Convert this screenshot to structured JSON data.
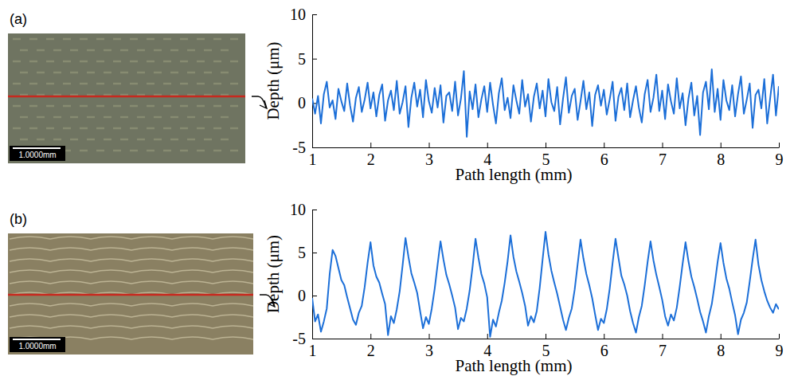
{
  "figure": {
    "panels": [
      {
        "label": "(a)",
        "scale_bar": "1.0000mm"
      },
      {
        "label": "(b)",
        "scale_bar": "1.0000mm"
      }
    ]
  },
  "chart_data": [
    {
      "type": "line",
      "x_label": "Path length (mm)",
      "y_label": "Depth (μm)",
      "xlim": [
        1,
        9
      ],
      "xticks": [
        1,
        2,
        3,
        4,
        5,
        6,
        7,
        8,
        9
      ],
      "ylim": [
        -5,
        10
      ],
      "yticks": [
        -5,
        0,
        5,
        10
      ],
      "grid": false,
      "x": [
        1,
        1.05,
        1.1,
        1.15,
        1.2,
        1.25,
        1.3,
        1.35,
        1.4,
        1.45,
        1.5,
        1.55,
        1.6,
        1.65,
        1.7,
        1.75,
        1.8,
        1.85,
        1.9,
        1.95,
        2,
        2.05,
        2.1,
        2.15,
        2.2,
        2.25,
        2.3,
        2.35,
        2.4,
        2.45,
        2.5,
        2.55,
        2.6,
        2.65,
        2.7,
        2.75,
        2.8,
        2.85,
        2.9,
        2.95,
        3,
        3.05,
        3.1,
        3.15,
        3.2,
        3.25,
        3.3,
        3.35,
        3.4,
        3.45,
        3.5,
        3.55,
        3.6,
        3.65,
        3.7,
        3.75,
        3.8,
        3.85,
        3.9,
        3.95,
        4,
        4.05,
        4.1,
        4.15,
        4.2,
        4.25,
        4.3,
        4.35,
        4.4,
        4.45,
        4.5,
        4.55,
        4.6,
        4.65,
        4.7,
        4.75,
        4.8,
        4.85,
        4.9,
        4.95,
        5,
        5.05,
        5.1,
        5.15,
        5.2,
        5.25,
        5.3,
        5.35,
        5.4,
        5.45,
        5.5,
        5.55,
        5.6,
        5.65,
        5.7,
        5.75,
        5.8,
        5.85,
        5.9,
        5.95,
        6,
        6.05,
        6.1,
        6.15,
        6.2,
        6.25,
        6.3,
        6.35,
        6.4,
        6.45,
        6.5,
        6.55,
        6.6,
        6.65,
        6.7,
        6.75,
        6.8,
        6.85,
        6.9,
        6.95,
        7,
        7.05,
        7.1,
        7.15,
        7.2,
        7.25,
        7.3,
        7.35,
        7.4,
        7.45,
        7.5,
        7.55,
        7.6,
        7.65,
        7.7,
        7.75,
        7.8,
        7.85,
        7.9,
        7.95,
        8,
        8.05,
        8.1,
        8.15,
        8.2,
        8.25,
        8.3,
        8.35,
        8.4,
        8.45,
        8.5,
        8.55,
        8.6,
        8.65,
        8.7,
        8.75,
        8.8,
        8.85,
        8.9,
        8.95,
        9
      ],
      "series": [
        {
          "color": "#1c6fd8",
          "line_style": "solid",
          "values": [
            0.5,
            -1.2,
            0.8,
            -2.3,
            1.0,
            2.4,
            -0.5,
            0.3,
            -1.8,
            1.6,
            0.2,
            -0.9,
            2.2,
            -0.3,
            -2.1,
            0.6,
            1.8,
            -1.0,
            0.4,
            2.3,
            -0.6,
            1.2,
            -1.5,
            0.9,
            2.1,
            -2.0,
            0.3,
            1.4,
            -0.8,
            2.5,
            -1.2,
            0.1,
            1.9,
            -2.7,
            0.6,
            2.3,
            -0.4,
            1.5,
            -1.6,
            2.6,
            0.2,
            -1.1,
            1.7,
            -0.5,
            2.0,
            -2.2,
            0.8,
            1.2,
            -0.9,
            2.4,
            -1.4,
            0.5,
            3.6,
            -3.8,
            1.3,
            -0.7,
            2.1,
            -1.6,
            0.4,
            1.9,
            -1.0,
            2.3,
            -0.2,
            -2.3,
            1.1,
            2.8,
            -0.8,
            0.6,
            -1.7,
            2.0,
            0.3,
            -1.2,
            2.6,
            -0.4,
            1.0,
            -2.1,
            0.7,
            2.2,
            -0.6,
            1.4,
            -1.5,
            2.7,
            0.1,
            -0.9,
            1.8,
            -2.4,
            0.5,
            2.9,
            -1.1,
            0.8,
            1.6,
            -1.9,
            0.2,
            2.5,
            -0.7,
            1.2,
            -2.6,
            0.9,
            2.0,
            -0.3,
            1.5,
            -1.3,
            0.4,
            2.4,
            -2.0,
            0.7,
            1.7,
            -0.8,
            2.2,
            -1.6,
            0.3,
            1.9,
            -0.5,
            -2.2,
            1.0,
            2.6,
            -1.0,
            0.6,
            3.2,
            -0.9,
            1.4,
            -1.8,
            2.1,
            0.2,
            -1.2,
            2.8,
            -0.6,
            1.1,
            -2.5,
            0.5,
            2.3,
            -1.4,
            0.8,
            -3.6,
            1.2,
            2.4,
            -0.7,
            3.8,
            -1.0,
            1.6,
            -1.9,
            2.6,
            0.3,
            -0.8,
            2.0,
            -1.5,
            1.0,
            3.0,
            -1.2,
            0.4,
            2.2,
            -2.8,
            0.9,
            1.5,
            -0.6,
            2.7,
            -2.3,
            0.5,
            3.2,
            -1.4,
            1.9
          ]
        }
      ]
    },
    {
      "type": "line",
      "x_label": "Path length (mm)",
      "y_label": "Depth (μm)",
      "xlim": [
        1,
        9
      ],
      "xticks": [
        1,
        2,
        3,
        4,
        5,
        6,
        7,
        8,
        9
      ],
      "ylim": [
        -5,
        10
      ],
      "yticks": [
        -5,
        0,
        5,
        10
      ],
      "grid": false,
      "x": [
        1,
        1.05,
        1.1,
        1.15,
        1.2,
        1.25,
        1.3,
        1.35,
        1.4,
        1.45,
        1.5,
        1.55,
        1.6,
        1.65,
        1.7,
        1.75,
        1.8,
        1.85,
        1.9,
        1.95,
        2,
        2.05,
        2.1,
        2.15,
        2.2,
        2.25,
        2.3,
        2.35,
        2.4,
        2.45,
        2.5,
        2.55,
        2.6,
        2.65,
        2.7,
        2.75,
        2.8,
        2.85,
        2.9,
        2.95,
        3,
        3.05,
        3.1,
        3.15,
        3.2,
        3.25,
        3.3,
        3.35,
        3.4,
        3.45,
        3.5,
        3.55,
        3.6,
        3.65,
        3.7,
        3.75,
        3.8,
        3.85,
        3.9,
        3.95,
        4,
        4.05,
        4.1,
        4.15,
        4.2,
        4.25,
        4.3,
        4.35,
        4.4,
        4.45,
        4.5,
        4.55,
        4.6,
        4.65,
        4.7,
        4.75,
        4.8,
        4.85,
        4.9,
        4.95,
        5,
        5.05,
        5.1,
        5.15,
        5.2,
        5.25,
        5.3,
        5.35,
        5.4,
        5.45,
        5.5,
        5.55,
        5.6,
        5.65,
        5.7,
        5.75,
        5.8,
        5.85,
        5.9,
        5.95,
        6,
        6.05,
        6.1,
        6.15,
        6.2,
        6.25,
        6.3,
        6.35,
        6.4,
        6.45,
        6.5,
        6.55,
        6.6,
        6.65,
        6.7,
        6.75,
        6.8,
        6.85,
        6.9,
        6.95,
        7,
        7.05,
        7.1,
        7.15,
        7.2,
        7.25,
        7.3,
        7.35,
        7.4,
        7.45,
        7.5,
        7.55,
        7.6,
        7.65,
        7.7,
        7.75,
        7.8,
        7.85,
        7.9,
        7.95,
        8,
        8.05,
        8.1,
        8.15,
        8.2,
        8.25,
        8.3,
        8.35,
        8.4,
        8.45,
        8.5,
        8.55,
        8.6,
        8.65,
        8.7,
        8.75,
        8.8,
        8.85,
        8.9,
        8.95,
        9
      ],
      "series": [
        {
          "color": "#1c6fd8",
          "line_style": "solid",
          "values": [
            -0.3,
            -3.0,
            -2.2,
            -4.2,
            -3.0,
            -1.5,
            2.5,
            5.3,
            4.6,
            3.2,
            1.8,
            1.2,
            -0.2,
            -1.5,
            -2.8,
            -3.4,
            -2.0,
            -1.2,
            1.0,
            3.8,
            6.2,
            3.5,
            2.2,
            1.5,
            0.2,
            -1.0,
            -4.6,
            -2.4,
            -3.2,
            -1.6,
            0.5,
            3.5,
            6.7,
            4.5,
            2.6,
            1.5,
            0.3,
            -1.8,
            -3.8,
            -2.5,
            -3.3,
            -1.5,
            0.8,
            3.6,
            6.3,
            4.2,
            2.4,
            1.3,
            0.0,
            -1.4,
            -3.9,
            -2.6,
            -3.0,
            -1.5,
            0.6,
            3.4,
            6.6,
            4.4,
            2.5,
            1.4,
            -0.2,
            -4.8,
            -2.8,
            -3.6,
            -2.0,
            -0.6,
            1.5,
            4.0,
            7.0,
            4.5,
            2.8,
            1.6,
            0.3,
            -1.2,
            -3.5,
            -2.4,
            -3.1,
            -1.8,
            0.9,
            4.2,
            7.4,
            4.8,
            2.9,
            1.5,
            0.2,
            -1.3,
            -2.8,
            -4.0,
            -2.6,
            -1.5,
            0.7,
            3.6,
            6.5,
            4.3,
            2.5,
            1.2,
            -0.3,
            -2.2,
            -4.0,
            -2.7,
            -3.2,
            -1.6,
            0.8,
            3.8,
            6.6,
            4.4,
            2.3,
            1.3,
            0.0,
            -1.8,
            -3.2,
            -4.3,
            -2.5,
            -1.2,
            1.2,
            3.9,
            6.3,
            4.1,
            2.4,
            1.0,
            -0.5,
            -2.4,
            -3.5,
            -2.2,
            -2.9,
            -1.4,
            1.0,
            3.7,
            6.2,
            4.0,
            2.2,
            1.0,
            -0.4,
            -1.9,
            -3.0,
            -4.3,
            -2.4,
            -1.0,
            1.3,
            3.9,
            6.1,
            3.8,
            2.0,
            0.8,
            -0.8,
            -2.3,
            -4.5,
            -2.8,
            -2.0,
            -0.8,
            1.6,
            4.2,
            6.5,
            3.6,
            1.8,
            0.5,
            -0.6,
            -1.4,
            -2.0,
            -1.0,
            -1.6
          ]
        }
      ]
    }
  ]
}
